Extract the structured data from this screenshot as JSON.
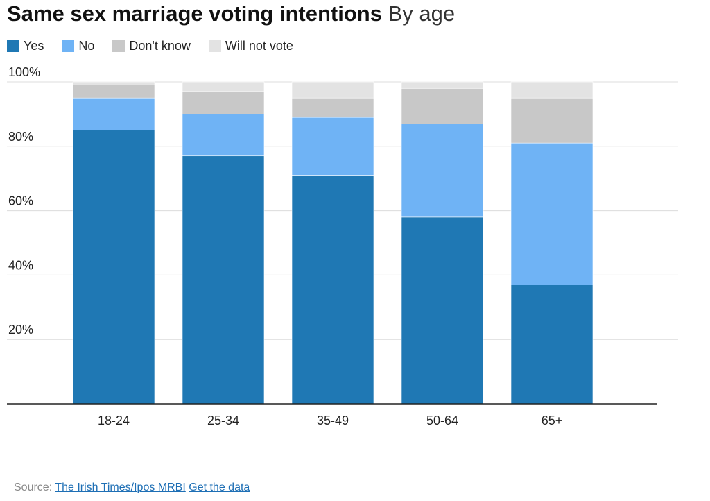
{
  "title": {
    "main": "Same sex marriage voting intentions",
    "sub": "By age"
  },
  "legend": [
    {
      "label": "Yes",
      "color": "#1f78b4"
    },
    {
      "label": "No",
      "color": "#6fb3f5"
    },
    {
      "label": "Don't know",
      "color": "#c8c8c8"
    },
    {
      "label": "Will not vote",
      "color": "#e3e3e3"
    }
  ],
  "source": {
    "prefix": "Source:",
    "link_label": "The Irish Times/Ipos MRBI",
    "data_link_label": "Get the data"
  },
  "chart_data": {
    "type": "bar",
    "stacked": true,
    "categories": [
      "18-24",
      "25-34",
      "35-49",
      "50-64",
      "65+"
    ],
    "series": [
      {
        "name": "Yes",
        "values": [
          85,
          77,
          71,
          58,
          37
        ],
        "color": "#1f78b4"
      },
      {
        "name": "No",
        "values": [
          10,
          13,
          18,
          29,
          44
        ],
        "color": "#6fb3f5"
      },
      {
        "name": "Don't know",
        "values": [
          4,
          7,
          6,
          11,
          14
        ],
        "color": "#c8c8c8"
      },
      {
        "name": "Will not vote",
        "values": [
          1,
          3,
          5,
          2,
          5
        ],
        "color": "#e3e3e3"
      }
    ],
    "ylim": [
      0,
      100
    ],
    "yticks": [
      20,
      40,
      60,
      80,
      100
    ],
    "ytick_labels": [
      "20%",
      "40%",
      "60%",
      "80%",
      "100%"
    ],
    "grid": true,
    "legend_position": "top-left"
  }
}
